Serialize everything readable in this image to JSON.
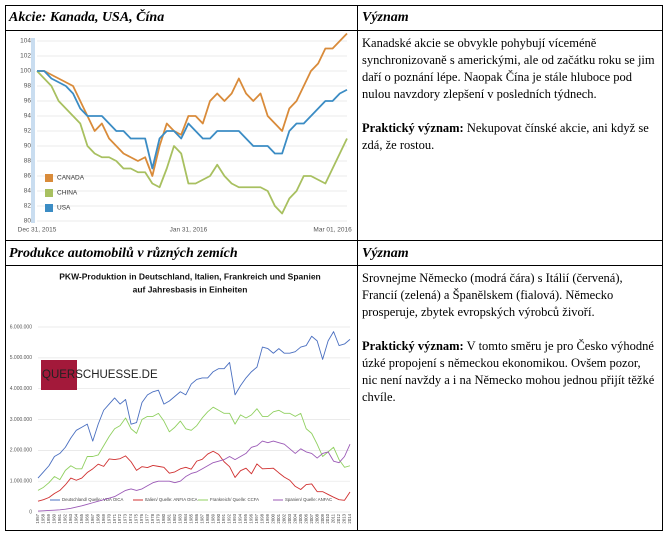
{
  "rows": [
    {
      "header": "Akcie: Kanada, USA, Čína",
      "meaning_header": "Význam",
      "text": "Kanadské akcie se obvykle pohybují víceméně synchronizovaně s americkými, ale od začátku roku se jim daří o poznání lépe. Naopak Čína je stále hluboce pod nulou navzdory zlepšení v posledních týdnech.",
      "practical_label": "Praktický význam:",
      "practical_text": "Nekupovat čínské akcie, ani když se zdá, že rostou."
    },
    {
      "header": "Produkce automobilů v různých zemích",
      "meaning_header": "Význam",
      "text": "Srovnejme Německo (modrá čára) s Itálií (červená), Francií (zelená) a Španělskem (fialová). Německo prosperuje, zbytek evropských výrobců živoří.",
      "practical_label": "Praktický význam:",
      "practical_text": "V tomto směru je pro Česko výhodné úzké propojení s německou ekonomikou. Ovšem pozor, nic není navždy a i na Německo mohou jednou přijít těžké chvíle."
    }
  ],
  "chart_data": [
    {
      "type": "line",
      "grid": true,
      "legend": "lower left",
      "categories": [
        "Dec 31, 2015",
        null,
        null,
        null,
        null,
        null,
        null,
        null,
        null,
        null,
        null,
        null,
        null,
        null,
        null,
        null,
        null,
        null,
        null,
        null,
        null,
        "Jan 31, 2016",
        null,
        null,
        null,
        null,
        null,
        null,
        null,
        null,
        null,
        null,
        null,
        null,
        null,
        null,
        null,
        null,
        null,
        null,
        null,
        "Mar 01, 2016",
        null,
        null
      ],
      "ylim": [
        80,
        104
      ],
      "yticks": [
        80,
        82,
        84,
        86,
        88,
        90,
        92,
        94,
        96,
        98,
        100,
        102,
        104
      ],
      "series": [
        {
          "name": "CANADA",
          "color": "#d98b3a",
          "values": [
            100,
            100,
            99.5,
            99,
            98.5,
            98,
            96,
            94,
            92,
            93,
            91,
            90,
            89,
            88.5,
            88,
            88.5,
            86,
            90,
            93,
            92,
            91.5,
            94,
            94,
            93,
            96,
            97,
            96,
            97,
            99,
            97,
            96,
            97,
            94,
            93,
            92,
            95,
            96,
            98,
            100,
            101,
            103,
            103,
            104,
            105
          ]
        },
        {
          "name": "CHINA",
          "color": "#a8c060",
          "values": [
            100,
            99,
            98,
            96,
            95,
            94,
            93,
            90,
            89,
            88.5,
            88.5,
            88,
            87,
            87,
            86.5,
            86.5,
            85,
            84.5,
            87,
            90,
            89,
            85,
            85,
            85.5,
            86,
            87.5,
            86,
            85,
            84.5,
            84.5,
            84.5,
            84.5,
            84,
            82,
            81,
            83,
            84,
            86,
            86,
            85.5,
            85,
            87,
            89,
            91
          ]
        },
        {
          "name": "USA",
          "color": "#3b8cc4",
          "values": [
            100,
            100,
            99,
            98.5,
            98,
            97,
            95,
            94,
            94,
            94,
            93,
            92,
            92,
            91,
            91,
            91,
            87,
            91,
            92,
            92,
            91,
            93,
            92,
            91,
            91,
            92,
            92,
            92,
            92,
            91,
            90,
            90,
            90,
            89,
            89,
            92,
            93,
            93,
            94,
            95,
            96,
            96,
            97,
            97.5
          ]
        }
      ]
    },
    {
      "type": "line",
      "grid": true,
      "legend": "bottom",
      "title": "PKW-Produktion in Deutschland, Italien, Frankreich und Spanien",
      "subtitle": "auf Jahresbasis in Einheiten",
      "logo": "QUERSCHUESSE.DE",
      "categories": [
        "1957",
        "1958",
        "1959",
        "1960",
        "1961",
        "1962",
        "1963",
        "1964",
        "1965",
        "1966",
        "1967",
        "1968",
        "1969",
        "1970",
        "1971",
        "1972",
        "1973",
        "1974",
        "1975",
        "1976",
        "1977",
        "1978",
        "1979",
        "1980",
        "1981",
        "1982",
        "1983",
        "1984",
        "1985",
        "1986",
        "1987",
        "1988",
        "1989",
        "1990",
        "1991",
        "1992",
        "1993",
        "1994",
        "1995",
        "1996",
        "1997",
        "1998",
        "1999",
        "2000",
        "2001",
        "2002",
        "2003",
        "2004",
        "2005",
        "2006",
        "2007",
        "2008",
        "2009",
        "2010",
        "2011",
        "2012",
        "2013",
        "2014"
      ],
      "ylim": [
        0,
        6500000
      ],
      "yticks": [
        0,
        {
          "value": 1000000,
          "label": "1.000.000"
        },
        {
          "value": 2000000,
          "label": "2.000.000"
        },
        {
          "value": 3000000,
          "label": "3.000.000"
        },
        {
          "value": 4000000,
          "label": "4.000.000"
        },
        {
          "value": 5000000,
          "label": "5.000.000"
        },
        {
          "value": 6000000,
          "label": "6.000.000"
        }
      ],
      "series": [
        {
          "name": "Deutschland/ Quelle: VDA OICA",
          "color": "#4a6fc0",
          "values": [
            1100000,
            1300000,
            1500000,
            1800000,
            1900000,
            2100000,
            2400000,
            2650000,
            2750000,
            2850000,
            2300000,
            2850000,
            3300000,
            3500000,
            3700000,
            3500000,
            3650000,
            2850000,
            2900000,
            3550000,
            3800000,
            3900000,
            3950000,
            3500000,
            3600000,
            3750000,
            3900000,
            3800000,
            4150000,
            4300000,
            4350000,
            4350000,
            4550000,
            4650000,
            4650000,
            4850000,
            3800000,
            4100000,
            4350000,
            4550000,
            4700000,
            5350000,
            5300000,
            5150000,
            5300000,
            5150000,
            5150000,
            5200000,
            5350000,
            5400000,
            5700000,
            5550000,
            4950000,
            5550000,
            5850000,
            5400000,
            5450000,
            5600000
          ]
        },
        {
          "name": "Italien/ Quelle: ANFIA OICA",
          "color": "#d03030",
          "values": [
            350000,
            400000,
            470000,
            600000,
            700000,
            880000,
            1100000,
            1030000,
            1100000,
            1280000,
            1400000,
            1550000,
            1480000,
            1720000,
            1700000,
            1730000,
            1820000,
            1630000,
            1350000,
            1470000,
            1440000,
            1510000,
            1480000,
            1450000,
            1260000,
            1300000,
            1400000,
            1450000,
            1390000,
            1650000,
            1710000,
            1880000,
            1970000,
            1870000,
            1630000,
            1470000,
            1120000,
            1340000,
            1420000,
            1240000,
            1560000,
            1400000,
            1410000,
            1420000,
            1270000,
            1130000,
            1030000,
            830000,
            730000,
            890000,
            910000,
            660000,
            660000,
            570000,
            480000,
            400000,
            380000,
            650000
          ]
        },
        {
          "name": "Frankreich/ Quelle: CCFA",
          "color": "#90d060",
          "values": [
            700000,
            800000,
            950000,
            1150000,
            1050000,
            1350000,
            1500000,
            1400000,
            1400000,
            1800000,
            1800000,
            1850000,
            2150000,
            2450000,
            2700000,
            2800000,
            3050000,
            2700000,
            2550000,
            3000000,
            3100000,
            3100000,
            3200000,
            2950000,
            2600000,
            2750000,
            2950000,
            2700000,
            2650000,
            2800000,
            3050000,
            3250000,
            3400000,
            3300000,
            3200000,
            3200000,
            2850000,
            3150000,
            3050000,
            3150000,
            3350000,
            3100000,
            3100000,
            3250000,
            3300000,
            3200000,
            3200000,
            3100000,
            3200000,
            2700000,
            2550000,
            2200000,
            1800000,
            1950000,
            2100000,
            1700000,
            1450000,
            1500000
          ]
        },
        {
          "name": "Spanien/ Quelle: ANFAC",
          "color": "#9b59b6",
          "values": [
            30000,
            40000,
            50000,
            60000,
            70000,
            90000,
            120000,
            160000,
            200000,
            250000,
            300000,
            350000,
            400000,
            450000,
            500000,
            600000,
            700000,
            750000,
            700000,
            750000,
            850000,
            950000,
            1000000,
            1000000,
            1000000,
            950000,
            1000000,
            1150000,
            1250000,
            1300000,
            1400000,
            1500000,
            1600000,
            1650000,
            1700000,
            1800000,
            1700000,
            1800000,
            1900000,
            2100000,
            2150000,
            2300000,
            2250000,
            2300000,
            2250000,
            2200000,
            2050000,
            1900000,
            2050000,
            1950000,
            1900000,
            1750000,
            1900000,
            1950000,
            1650000,
            1600000,
            1800000,
            2200000
          ]
        }
      ]
    }
  ]
}
